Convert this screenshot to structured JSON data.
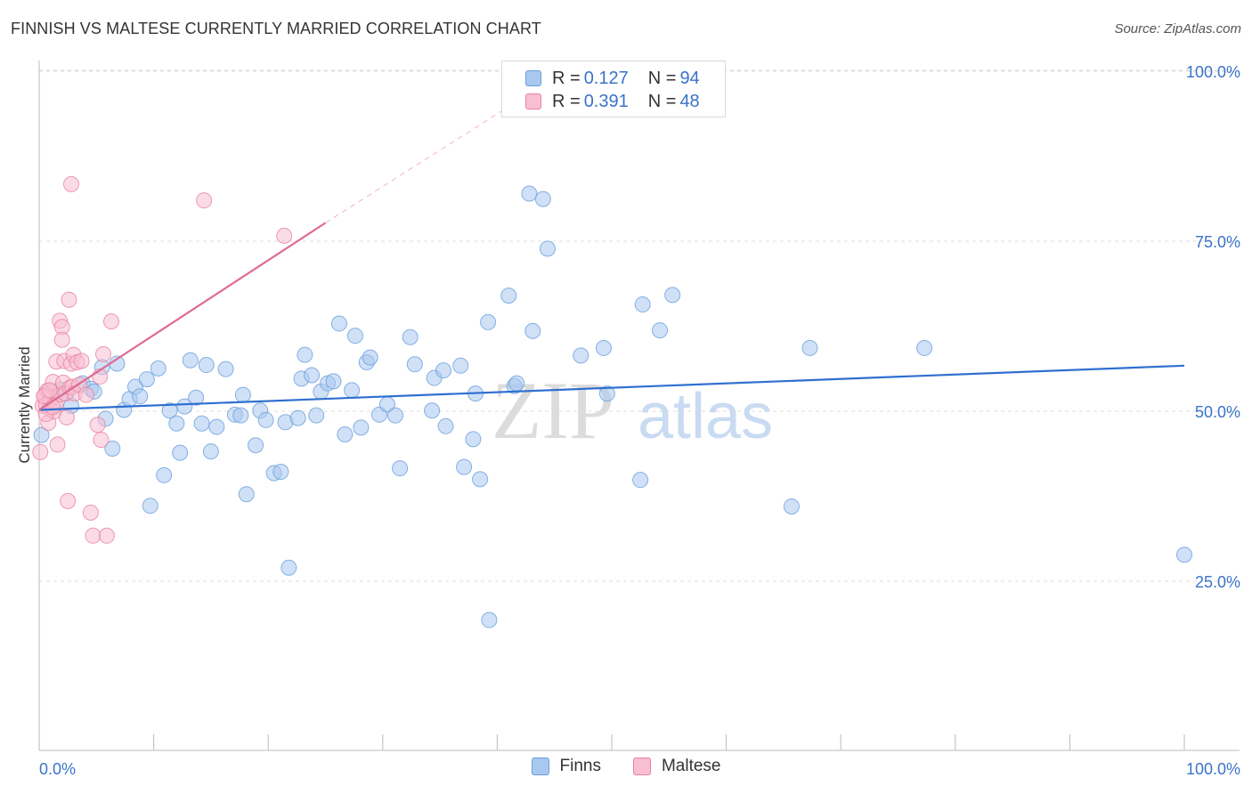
{
  "header": {
    "title": "FINNISH VS MALTESE CURRENTLY MARRIED CORRELATION CHART",
    "source": "Source: ZipAtlas.com"
  },
  "watermark": {
    "zip": "ZIP",
    "atlas": "atlas"
  },
  "legend": {
    "rows": [
      {
        "r_label": "R = ",
        "r_value": "0.127",
        "n_label": "N = ",
        "n_value": "94",
        "color": "#a9c8f0",
        "border": "#6a9fdc"
      },
      {
        "r_label": "R = ",
        "r_value": "0.391",
        "n_label": "N = ",
        "n_value": "48",
        "color": "#f7bfd1",
        "border": "#e8829f"
      }
    ]
  },
  "bottom_legend": [
    {
      "label": "Finns",
      "color": "#a9c8f0",
      "border": "#6a9fdc"
    },
    {
      "label": "Maltese",
      "color": "#f7bfd1",
      "border": "#e8829f"
    }
  ],
  "chart_data": {
    "type": "scatter",
    "title": "FINNISH VS MALTESE CURRENTLY MARRIED CORRELATION CHART",
    "xlabel": "",
    "ylabel": "Currently Married",
    "xlim": [
      0,
      100
    ],
    "ylim": [
      0,
      105
    ],
    "x_tick_labels": [
      "0.0%",
      "100.0%"
    ],
    "y_ticks": [
      25,
      50,
      75,
      100
    ],
    "y_tick_labels": [
      "25.0%",
      "50.0%",
      "75.0%",
      "100.0%"
    ],
    "grid": true,
    "legend_position": "top-center",
    "series": [
      {
        "name": "Finns",
        "color": "#6a9fdc",
        "fill": "#a9c8f0",
        "line_color": "#2f6fd0",
        "trend": {
          "x0": 0,
          "y0": 50.2,
          "x1": 100,
          "y1": 56.7
        },
        "points": [
          [
            0.2,
            46.5
          ],
          [
            1.8,
            53.2
          ],
          [
            2.4,
            52.7
          ],
          [
            2.8,
            50.8
          ],
          [
            3.8,
            54.1
          ],
          [
            4.5,
            53.3
          ],
          [
            4.8,
            52.9
          ],
          [
            5.5,
            56.5
          ],
          [
            5.8,
            48.9
          ],
          [
            6.4,
            44.5
          ],
          [
            6.8,
            57.0
          ],
          [
            7.4,
            50.2
          ],
          [
            7.9,
            51.8
          ],
          [
            8.4,
            53.6
          ],
          [
            8.8,
            52.2
          ],
          [
            9.4,
            54.7
          ],
          [
            9.7,
            36.1
          ],
          [
            10.4,
            56.3
          ],
          [
            10.9,
            40.6
          ],
          [
            11.4,
            50.1
          ],
          [
            12.0,
            48.2
          ],
          [
            12.3,
            43.9
          ],
          [
            12.7,
            50.7
          ],
          [
            13.2,
            57.5
          ],
          [
            13.7,
            52.0
          ],
          [
            14.2,
            48.2
          ],
          [
            14.6,
            56.8
          ],
          [
            15.0,
            44.1
          ],
          [
            15.5,
            47.7
          ],
          [
            16.3,
            56.2
          ],
          [
            17.1,
            49.5
          ],
          [
            17.6,
            49.4
          ],
          [
            17.8,
            52.4
          ],
          [
            18.1,
            37.8
          ],
          [
            18.9,
            45.0
          ],
          [
            19.3,
            50.1
          ],
          [
            19.8,
            48.7
          ],
          [
            20.5,
            40.9
          ],
          [
            21.1,
            41.1
          ],
          [
            21.5,
            48.4
          ],
          [
            21.8,
            27.0
          ],
          [
            22.6,
            49.0
          ],
          [
            22.9,
            54.8
          ],
          [
            23.2,
            58.3
          ],
          [
            23.8,
            55.3
          ],
          [
            24.2,
            49.4
          ],
          [
            24.6,
            52.9
          ],
          [
            25.2,
            54.1
          ],
          [
            25.7,
            54.4
          ],
          [
            26.2,
            62.9
          ],
          [
            26.7,
            46.6
          ],
          [
            27.3,
            53.1
          ],
          [
            27.6,
            61.1
          ],
          [
            28.1,
            47.6
          ],
          [
            28.6,
            57.2
          ],
          [
            28.9,
            57.9
          ],
          [
            29.7,
            49.5
          ],
          [
            30.4,
            51.0
          ],
          [
            31.1,
            49.4
          ],
          [
            31.5,
            41.6
          ],
          [
            32.4,
            60.9
          ],
          [
            32.8,
            56.9
          ],
          [
            34.3,
            50.1
          ],
          [
            34.5,
            54.9
          ],
          [
            35.3,
            56.0
          ],
          [
            35.5,
            47.8
          ],
          [
            36.8,
            56.7
          ],
          [
            37.1,
            41.8
          ],
          [
            37.9,
            45.9
          ],
          [
            38.1,
            52.6
          ],
          [
            38.5,
            40.0
          ],
          [
            39.2,
            63.1
          ],
          [
            39.3,
            19.3
          ],
          [
            41.0,
            67.0
          ],
          [
            41.5,
            53.7
          ],
          [
            41.7,
            54.1
          ],
          [
            42.8,
            82.0
          ],
          [
            43.1,
            61.8
          ],
          [
            44.0,
            81.2
          ],
          [
            44.4,
            73.9
          ],
          [
            47.3,
            58.2
          ],
          [
            49.3,
            59.3
          ],
          [
            49.6,
            52.6
          ],
          [
            52.5,
            39.9
          ],
          [
            52.7,
            65.7
          ],
          [
            54.2,
            61.9
          ],
          [
            55.3,
            67.1
          ],
          [
            65.7,
            36.0
          ],
          [
            67.3,
            59.3
          ],
          [
            77.3,
            59.3
          ],
          [
            100.0,
            28.9
          ]
        ]
      },
      {
        "name": "Maltese",
        "color": "#e8829f",
        "fill": "#f7bfd1",
        "line_color": "#e06a94",
        "trend": {
          "x0": 0,
          "y0": 50.2,
          "x1": 25,
          "y1": 77.7,
          "dash_to": {
            "x": 44,
            "y": 98
          }
        },
        "points": [
          [
            0.1,
            44.0
          ],
          [
            0.3,
            50.8
          ],
          [
            0.5,
            52.4
          ],
          [
            0.6,
            51.0
          ],
          [
            0.7,
            53.0
          ],
          [
            0.8,
            48.3
          ],
          [
            0.9,
            50.4
          ],
          [
            1.0,
            51.8
          ],
          [
            1.1,
            52.9
          ],
          [
            1.2,
            54.3
          ],
          [
            1.3,
            50.0
          ],
          [
            1.4,
            50.9
          ],
          [
            1.5,
            57.3
          ],
          [
            1.6,
            45.1
          ],
          [
            1.8,
            63.3
          ],
          [
            1.9,
            52.5
          ],
          [
            2.0,
            62.4
          ],
          [
            2.0,
            60.5
          ],
          [
            2.1,
            54.2
          ],
          [
            2.2,
            57.4
          ],
          [
            2.3,
            52.6
          ],
          [
            2.4,
            49.1
          ],
          [
            2.5,
            36.8
          ],
          [
            2.6,
            66.4
          ],
          [
            2.7,
            53.5
          ],
          [
            2.8,
            57.0
          ],
          [
            2.9,
            53.6
          ],
          [
            3.0,
            58.3
          ],
          [
            3.1,
            52.6
          ],
          [
            3.3,
            57.2
          ],
          [
            2.8,
            83.4
          ],
          [
            3.5,
            53.9
          ],
          [
            3.7,
            57.4
          ],
          [
            4.1,
            52.4
          ],
          [
            4.5,
            35.1
          ],
          [
            4.7,
            31.7
          ],
          [
            5.1,
            48.0
          ],
          [
            5.3,
            55.1
          ],
          [
            5.4,
            45.8
          ],
          [
            5.6,
            58.4
          ],
          [
            5.9,
            31.7
          ],
          [
            6.3,
            63.2
          ],
          [
            14.4,
            81.0
          ],
          [
            21.4,
            75.8
          ],
          [
            0.4,
            52.2
          ],
          [
            0.6,
            49.6
          ],
          [
            0.9,
            53.1
          ],
          [
            1.2,
            50.6
          ]
        ]
      }
    ]
  }
}
